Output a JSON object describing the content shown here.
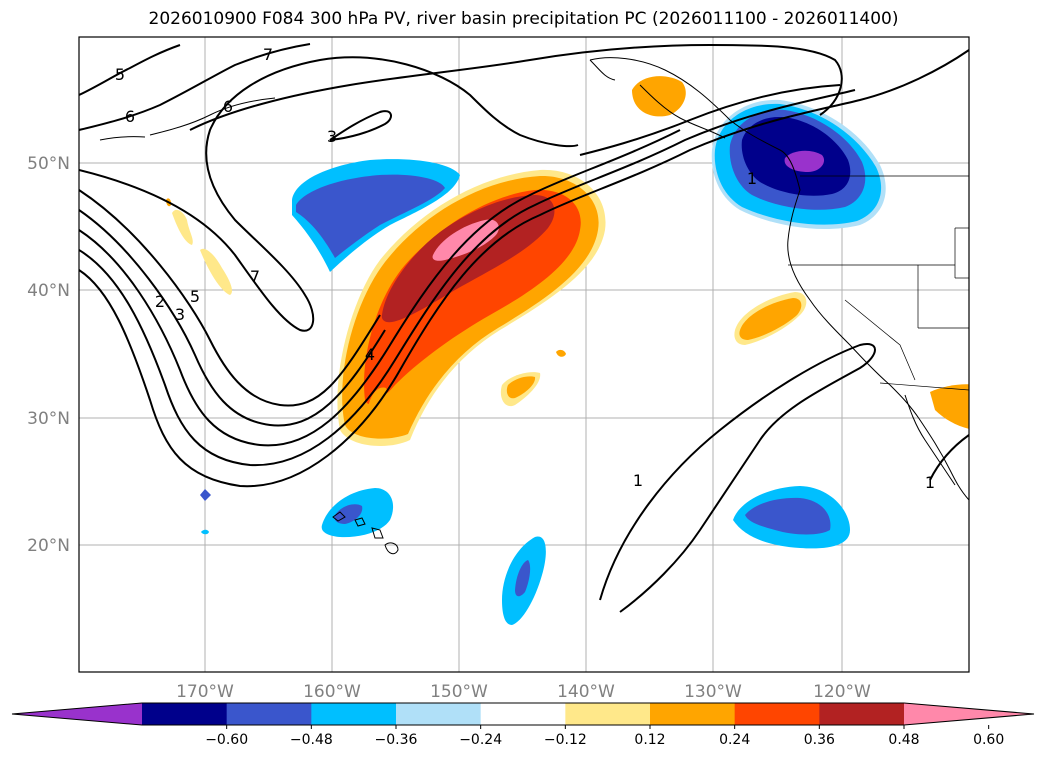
{
  "title": "2026010900 F084 300 hPa PV, river basin precipitation PC (2026011100 - 2026011400)",
  "map": {
    "lat_labels": [
      "50°N",
      "40°N",
      "30°N",
      "20°N"
    ],
    "lon_labels": [
      "170°W",
      "160°W",
      "150°W",
      "140°W",
      "130°W",
      "120°W"
    ],
    "contour_labels": [
      "5",
      "7",
      "6",
      "6",
      "3",
      "2",
      "3",
      "5",
      "7",
      "4",
      "1",
      "1",
      "1"
    ]
  },
  "colorbar": {
    "colors": [
      "#9932cc",
      "#00008b",
      "#3a56cc",
      "#00bfff",
      "#b0e0f8",
      "#ffffff",
      "#ffe88a",
      "#ffa500",
      "#ff4500",
      "#b22222",
      "#ff88aa"
    ],
    "tick_labels": [
      "−0.60",
      "−0.48",
      "−0.36",
      "−0.24",
      "−0.12",
      "0.12",
      "0.24",
      "0.36",
      "0.48",
      "0.60"
    ]
  }
}
